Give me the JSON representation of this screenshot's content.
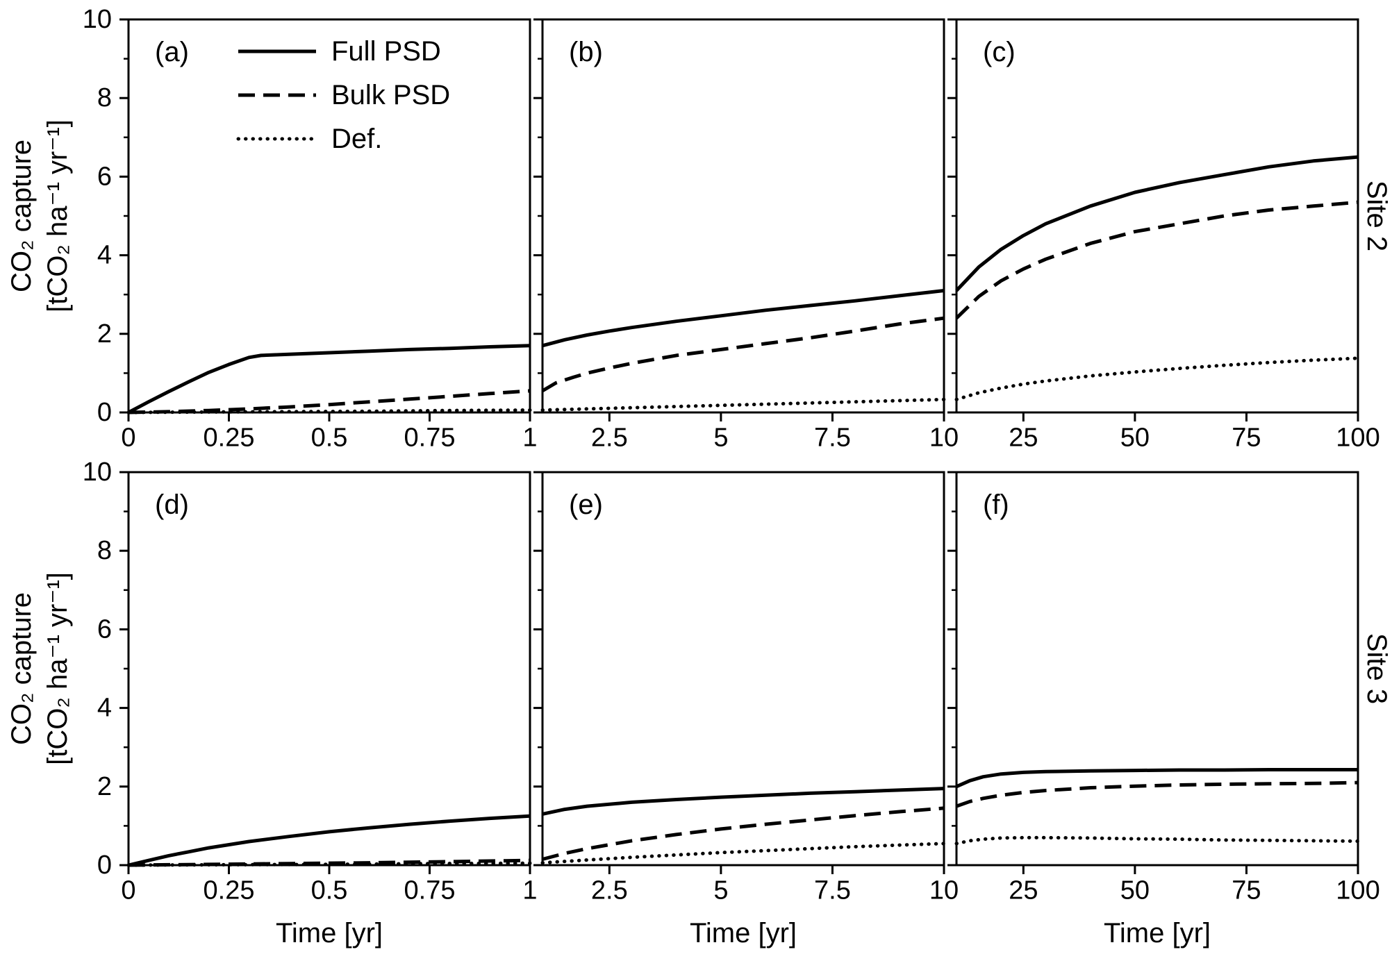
{
  "figure": {
    "background": "#ffffff",
    "line_color": "#000000",
    "ylabel": [
      "CO₂ capture",
      "[tCO₂ ha⁻¹ yr⁻¹]"
    ],
    "xlabel": "Time [yr]",
    "site_labels": [
      "Site 2",
      "Site 3"
    ]
  },
  "legend": {
    "position": "inside-panel-a-top-left",
    "items": [
      {
        "label": "Full PSD",
        "style": "solid"
      },
      {
        "label": "Bulk PSD",
        "style": "dashed"
      },
      {
        "label": "Def.",
        "style": "dotted"
      }
    ]
  },
  "chart_data": [
    {
      "type": "line",
      "id": "a",
      "panel": "(a)",
      "row": 0,
      "col": 0,
      "site": "Site 2",
      "xlim": [
        0,
        1
      ],
      "ylim": [
        0,
        10
      ],
      "xticks": [
        0,
        0.25,
        0.5,
        0.75,
        1
      ],
      "xtick_labels": [
        "0",
        "0.25",
        "0.5",
        "0.75",
        "1"
      ],
      "yticks": [
        0,
        2,
        4,
        6,
        8,
        10
      ],
      "ytick_labels": [
        "0",
        "2",
        "4",
        "6",
        "8",
        "10"
      ],
      "yticks_minor": [
        1,
        3,
        5,
        7,
        9
      ],
      "show_ytick_labels": true,
      "grid": false,
      "series": [
        {
          "name": "Full PSD",
          "style": "solid",
          "x": [
            0,
            0.05,
            0.1,
            0.15,
            0.2,
            0.25,
            0.3,
            0.33,
            0.4,
            0.5,
            0.6,
            0.7,
            0.8,
            0.9,
            1
          ],
          "y": [
            0,
            0.27,
            0.53,
            0.78,
            1.02,
            1.22,
            1.4,
            1.45,
            1.48,
            1.52,
            1.56,
            1.6,
            1.63,
            1.67,
            1.7
          ]
        },
        {
          "name": "Bulk PSD",
          "style": "dashed",
          "x": [
            0,
            0.1,
            0.2,
            0.3,
            0.4,
            0.5,
            0.6,
            0.7,
            0.8,
            0.9,
            1
          ],
          "y": [
            0,
            0.02,
            0.05,
            0.09,
            0.14,
            0.2,
            0.27,
            0.34,
            0.41,
            0.48,
            0.55
          ]
        },
        {
          "name": "Def.",
          "style": "dotted",
          "x": [
            0,
            0.2,
            0.4,
            0.6,
            0.8,
            1
          ],
          "y": [
            0,
            0.01,
            0.02,
            0.03,
            0.05,
            0.06
          ]
        }
      ]
    },
    {
      "type": "line",
      "id": "b",
      "panel": "(b)",
      "row": 0,
      "col": 1,
      "site": "Site 2",
      "xlim": [
        1,
        10
      ],
      "ylim": [
        0,
        10
      ],
      "xticks": [
        2.5,
        5,
        7.5,
        10
      ],
      "xtick_labels": [
        "2.5",
        "5",
        "7.5",
        "10"
      ],
      "yticks": [
        0,
        2,
        4,
        6,
        8,
        10
      ],
      "ytick_labels": [
        "0",
        "2",
        "4",
        "6",
        "8",
        "10"
      ],
      "yticks_minor": [
        1,
        3,
        5,
        7,
        9
      ],
      "show_ytick_labels": false,
      "grid": false,
      "series": [
        {
          "name": "Full PSD",
          "style": "solid",
          "x": [
            1,
            1.5,
            2,
            2.5,
            3,
            4,
            5,
            6,
            7,
            8,
            9,
            10
          ],
          "y": [
            1.7,
            1.85,
            1.97,
            2.07,
            2.16,
            2.32,
            2.46,
            2.6,
            2.72,
            2.84,
            2.97,
            3.1
          ]
        },
        {
          "name": "Bulk PSD",
          "style": "dashed",
          "x": [
            1,
            1.3,
            1.7,
            2,
            2.5,
            3,
            4,
            5,
            6,
            7,
            8,
            9,
            10
          ],
          "y": [
            0.55,
            0.75,
            0.9,
            1.0,
            1.13,
            1.25,
            1.45,
            1.6,
            1.75,
            1.9,
            2.07,
            2.25,
            2.4
          ]
        },
        {
          "name": "Def.",
          "style": "dotted",
          "x": [
            1,
            2,
            3,
            4,
            5,
            6,
            7,
            8,
            9,
            10
          ],
          "y": [
            0.06,
            0.09,
            0.12,
            0.15,
            0.18,
            0.21,
            0.24,
            0.27,
            0.3,
            0.33
          ]
        }
      ]
    },
    {
      "type": "line",
      "id": "c",
      "panel": "(c)",
      "row": 0,
      "col": 2,
      "site": "Site 2",
      "xlim": [
        10,
        100
      ],
      "ylim": [
        0,
        10
      ],
      "xticks": [
        25,
        50,
        75,
        100
      ],
      "xtick_labels": [
        "25",
        "50",
        "75",
        "100"
      ],
      "yticks": [
        0,
        2,
        4,
        6,
        8,
        10
      ],
      "ytick_labels": [
        "0",
        "2",
        "4",
        "6",
        "8",
        "10"
      ],
      "yticks_minor": [
        1,
        3,
        5,
        7,
        9
      ],
      "show_ytick_labels": false,
      "grid": false,
      "series": [
        {
          "name": "Full PSD",
          "style": "solid",
          "x": [
            10,
            15,
            20,
            25,
            30,
            40,
            50,
            60,
            70,
            80,
            90,
            100
          ],
          "y": [
            3.1,
            3.7,
            4.15,
            4.5,
            4.8,
            5.25,
            5.6,
            5.85,
            6.05,
            6.25,
            6.4,
            6.5
          ]
        },
        {
          "name": "Bulk PSD",
          "style": "dashed",
          "x": [
            10,
            15,
            20,
            25,
            30,
            40,
            50,
            60,
            70,
            80,
            90,
            100
          ],
          "y": [
            2.4,
            2.95,
            3.35,
            3.65,
            3.9,
            4.3,
            4.6,
            4.8,
            5.0,
            5.15,
            5.25,
            5.35
          ]
        },
        {
          "name": "Def.",
          "style": "dotted",
          "x": [
            10,
            15,
            20,
            25,
            30,
            40,
            50,
            60,
            70,
            80,
            90,
            100
          ],
          "y": [
            0.33,
            0.5,
            0.62,
            0.72,
            0.8,
            0.93,
            1.03,
            1.12,
            1.2,
            1.27,
            1.33,
            1.38
          ]
        }
      ]
    },
    {
      "type": "line",
      "id": "d",
      "panel": "(d)",
      "row": 1,
      "col": 0,
      "site": "Site 3",
      "xlim": [
        0,
        1
      ],
      "ylim": [
        0,
        10
      ],
      "xticks": [
        0,
        0.25,
        0.5,
        0.75,
        1
      ],
      "xtick_labels": [
        "0",
        "0.25",
        "0.5",
        "0.75",
        "1"
      ],
      "yticks": [
        0,
        2,
        4,
        6,
        8,
        10
      ],
      "ytick_labels": [
        "0",
        "2",
        "4",
        "6",
        "8",
        "10"
      ],
      "yticks_minor": [
        1,
        3,
        5,
        7,
        9
      ],
      "show_ytick_labels": true,
      "grid": false,
      "series": [
        {
          "name": "Full PSD",
          "style": "solid",
          "x": [
            0,
            0.05,
            0.1,
            0.15,
            0.2,
            0.3,
            0.4,
            0.5,
            0.6,
            0.7,
            0.8,
            0.9,
            1
          ],
          "y": [
            0,
            0.12,
            0.24,
            0.34,
            0.44,
            0.6,
            0.73,
            0.85,
            0.95,
            1.04,
            1.12,
            1.19,
            1.25
          ]
        },
        {
          "name": "Bulk PSD",
          "style": "dashed",
          "x": [
            0,
            0.2,
            0.4,
            0.6,
            0.8,
            1
          ],
          "y": [
            0,
            0.02,
            0.04,
            0.06,
            0.09,
            0.12
          ]
        },
        {
          "name": "Def.",
          "style": "dotted",
          "x": [
            0,
            0.25,
            0.5,
            0.75,
            1
          ],
          "y": [
            0,
            0.01,
            0.02,
            0.04,
            0.05
          ]
        }
      ]
    },
    {
      "type": "line",
      "id": "e",
      "panel": "(e)",
      "row": 1,
      "col": 1,
      "site": "Site 3",
      "xlim": [
        1,
        10
      ],
      "ylim": [
        0,
        10
      ],
      "xticks": [
        2.5,
        5,
        7.5,
        10
      ],
      "xtick_labels": [
        "2.5",
        "5",
        "7.5",
        "10"
      ],
      "yticks": [
        0,
        2,
        4,
        6,
        8,
        10
      ],
      "ytick_labels": [
        "0",
        "2",
        "4",
        "6",
        "8",
        "10"
      ],
      "yticks_minor": [
        1,
        3,
        5,
        7,
        9
      ],
      "show_ytick_labels": false,
      "grid": false,
      "series": [
        {
          "name": "Full PSD",
          "style": "solid",
          "x": [
            1,
            1.5,
            2,
            3,
            4,
            5,
            6,
            7,
            8,
            9,
            10
          ],
          "y": [
            1.3,
            1.42,
            1.5,
            1.6,
            1.67,
            1.73,
            1.78,
            1.83,
            1.87,
            1.91,
            1.95
          ]
        },
        {
          "name": "Bulk PSD",
          "style": "dashed",
          "x": [
            1,
            1.5,
            2,
            3,
            4,
            5,
            6,
            7,
            8,
            9,
            10
          ],
          "y": [
            0.15,
            0.3,
            0.42,
            0.62,
            0.78,
            0.92,
            1.04,
            1.15,
            1.26,
            1.36,
            1.45
          ]
        },
        {
          "name": "Def.",
          "style": "dotted",
          "x": [
            1,
            2,
            3,
            4,
            5,
            6,
            7,
            8,
            9,
            10
          ],
          "y": [
            0.06,
            0.13,
            0.2,
            0.26,
            0.32,
            0.37,
            0.42,
            0.47,
            0.51,
            0.55
          ]
        }
      ]
    },
    {
      "type": "line",
      "id": "f",
      "panel": "(f)",
      "row": 1,
      "col": 2,
      "site": "Site 3",
      "xlim": [
        10,
        100
      ],
      "ylim": [
        0,
        10
      ],
      "xticks": [
        25,
        50,
        75,
        100
      ],
      "xtick_labels": [
        "25",
        "50",
        "75",
        "100"
      ],
      "yticks": [
        0,
        2,
        4,
        6,
        8,
        10
      ],
      "ytick_labels": [
        "0",
        "2",
        "4",
        "6",
        "8",
        "10"
      ],
      "yticks_minor": [
        1,
        3,
        5,
        7,
        9
      ],
      "show_ytick_labels": false,
      "grid": false,
      "series": [
        {
          "name": "Full PSD",
          "style": "solid",
          "x": [
            10,
            13,
            16,
            20,
            25,
            30,
            40,
            50,
            60,
            70,
            80,
            90,
            100
          ],
          "y": [
            2.0,
            2.15,
            2.25,
            2.32,
            2.36,
            2.38,
            2.4,
            2.41,
            2.42,
            2.42,
            2.43,
            2.43,
            2.43
          ]
        },
        {
          "name": "Bulk PSD",
          "style": "dashed",
          "x": [
            10,
            13,
            16,
            20,
            25,
            30,
            40,
            50,
            60,
            70,
            80,
            90,
            100
          ],
          "y": [
            1.5,
            1.62,
            1.7,
            1.78,
            1.85,
            1.9,
            1.97,
            2.01,
            2.04,
            2.06,
            2.07,
            2.08,
            2.1
          ]
        },
        {
          "name": "Def.",
          "style": "dotted",
          "x": [
            10,
            13,
            16,
            20,
            25,
            30,
            40,
            50,
            60,
            70,
            80,
            90,
            100
          ],
          "y": [
            0.55,
            0.62,
            0.66,
            0.69,
            0.7,
            0.7,
            0.69,
            0.67,
            0.66,
            0.64,
            0.63,
            0.62,
            0.61
          ]
        }
      ]
    }
  ]
}
